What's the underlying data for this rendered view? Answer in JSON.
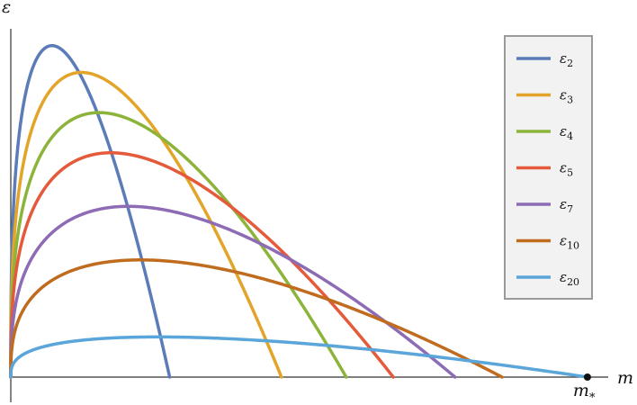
{
  "chart_data": {
    "type": "line",
    "title": "",
    "xlabel": "m",
    "ylabel": "ε",
    "xlim": [
      0,
      1.0
    ],
    "ylim": [
      0,
      1.0
    ],
    "grid": false,
    "legend": "top-right",
    "axis_ticks": "none",
    "annotations": [
      {
        "label": "m",
        "sub": "*",
        "x": 0.98,
        "y": 0,
        "marker": "dot"
      }
    ],
    "series": [
      {
        "name": "ε",
        "sub": "2",
        "color": "#5b7cb8",
        "x_peak": 0.07,
        "y_peak": 0.99,
        "x_end": 0.27
      },
      {
        "name": "ε",
        "sub": "3",
        "color": "#e3a42a",
        "x_peak": 0.12,
        "y_peak": 0.91,
        "x_end": 0.46
      },
      {
        "name": "ε",
        "sub": "4",
        "color": "#8db43a",
        "x_peak": 0.15,
        "y_peak": 0.79,
        "x_end": 0.57
      },
      {
        "name": "ε",
        "sub": "5",
        "color": "#e45a3a",
        "x_peak": 0.17,
        "y_peak": 0.67,
        "x_end": 0.65
      },
      {
        "name": "ε",
        "sub": "7",
        "color": "#8d6bb5",
        "x_peak": 0.2,
        "y_peak": 0.51,
        "x_end": 0.755
      },
      {
        "name": "ε",
        "sub": "10",
        "color": "#c06c1e",
        "x_peak": 0.22,
        "y_peak": 0.35,
        "x_end": 0.835
      },
      {
        "name": "ε",
        "sub": "20",
        "color": "#5aa5d9",
        "x_peak": 0.25,
        "y_peak": 0.12,
        "x_end": 0.98
      }
    ]
  }
}
